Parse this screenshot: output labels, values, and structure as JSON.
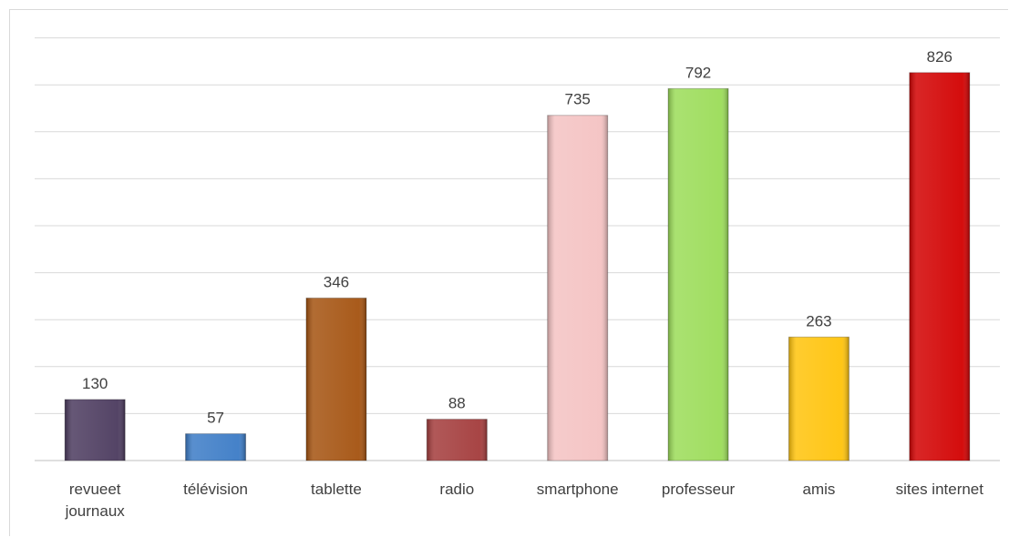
{
  "chart_data": {
    "type": "bar",
    "categories": [
      "revueet\njournaux",
      "télévision",
      "tablette",
      "radio",
      "smartphone",
      "professeur",
      "amis",
      "sites internet"
    ],
    "values": [
      130,
      57,
      346,
      88,
      735,
      792,
      263,
      826
    ],
    "colors": [
      "#4b3a5e",
      "#3b7bc6",
      "#a4520f",
      "#a33b3b",
      "#f4c2c2",
      "#9bdc58",
      "#ffc30a",
      "#d20000"
    ],
    "ylim": [
      0,
      900
    ],
    "yticks": [
      0,
      100,
      200,
      300,
      400,
      500,
      600,
      700,
      800,
      900
    ],
    "grid": true
  }
}
